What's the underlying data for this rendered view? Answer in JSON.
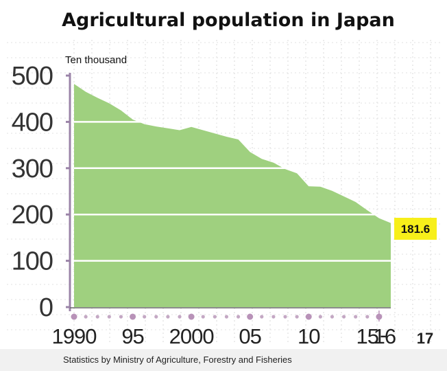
{
  "chart_data": {
    "type": "area",
    "title": "Agricultural population in Japan",
    "unit_label": "Ten thousand",
    "ylim": [
      0,
      500
    ],
    "y_ticks": [
      "0",
      "100",
      "200",
      "300",
      "400",
      "500"
    ],
    "x_tick_labels": [
      "1990",
      "95",
      "2000",
      "05",
      "10",
      "15",
      "16",
      "17"
    ],
    "x_range": [
      1990,
      2017
    ],
    "grid": true,
    "fill_color": "#9fd07f",
    "series": [
      {
        "x": [
          1990,
          1991,
          1992,
          1993,
          1994,
          1995,
          1996,
          1997,
          1998,
          1999,
          2000,
          2001,
          2002,
          2003,
          2004,
          2005,
          2006,
          2007,
          2008,
          2009,
          2010,
          2011,
          2012,
          2013,
          2014,
          2015,
          2016,
          2017
        ],
        "values": [
          482,
          465,
          452,
          440,
          425,
          405,
          395,
          390,
          386,
          382,
          389,
          382,
          375,
          368,
          362,
          335,
          320,
          312,
          298,
          289,
          261,
          260,
          251,
          239,
          227,
          209,
          192,
          181.6
        ]
      }
    ],
    "annotations": [
      {
        "text": "181.6",
        "x": 2017,
        "y": 181.6,
        "background": "#f7ef1a"
      }
    ],
    "source": "Statistics by Ministry of Agriculture, Forestry and Fisheries"
  }
}
